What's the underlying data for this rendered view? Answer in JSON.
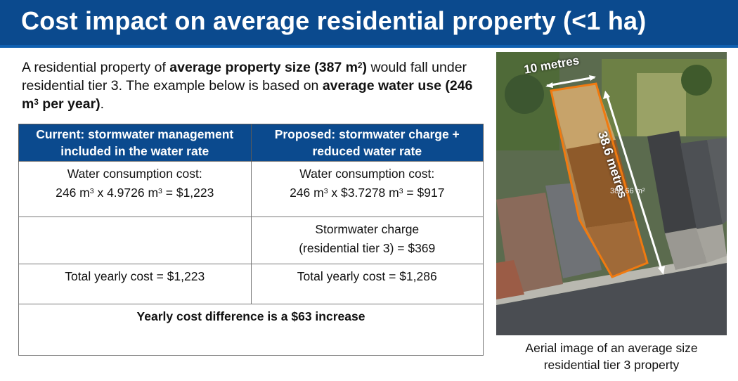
{
  "title": "Cost impact on average residential property (<1 ha)",
  "intro": {
    "p1": "A residential property of ",
    "b1": "average property size (387 m",
    "b1_sup": "2",
    "b1_end": ")",
    "p2": " would fall under residential tier 3. The example below is based on ",
    "b2": "average water use (246 m",
    "b2_sup": "3",
    "b2_end": " per year)",
    "p3": "."
  },
  "table": {
    "header_current": "Current: stormwater management included in the water rate",
    "header_proposed": "Proposed: stormwater charge + reduced water rate",
    "current_consumption_label": "Water consumption cost:",
    "current_consumption_a": "246 m",
    "current_consumption_b": " x 4.9726 m",
    "current_consumption_c": " = $1,223",
    "proposed_consumption_label": "Water consumption cost:",
    "proposed_consumption_a": "246 m",
    "proposed_consumption_b": " x $3.7278 m",
    "proposed_consumption_c": " = $917",
    "unit_sup": "3",
    "stormwater_line1": "Stormwater charge",
    "stormwater_line2": "(residential tier 3) = $369",
    "current_total": "Total yearly cost = $1,223",
    "proposed_total": "Total yearly cost = $1,286",
    "difference": "Yearly cost difference is a $63 increase"
  },
  "image": {
    "width_label": "10 metres",
    "length_label": "38.6 metres",
    "area_label": "386.66 m²",
    "lot_outline_color": "#f07a10",
    "caption_line1": "Aerial image of an average size",
    "caption_line2": "residential tier 3 property"
  }
}
